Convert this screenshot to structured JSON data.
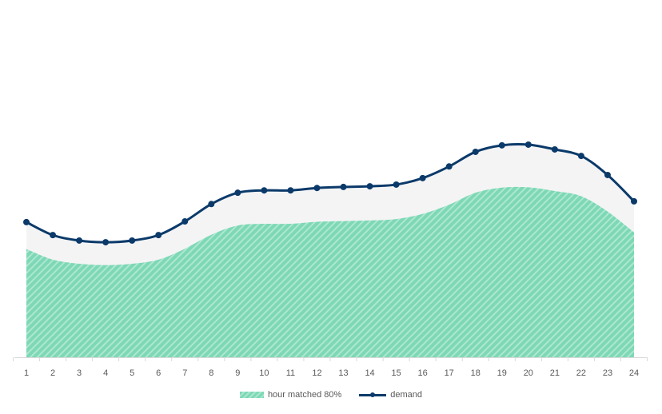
{
  "chart_data": {
    "type": "area",
    "title": "",
    "xlabel": "",
    "ylabel": "",
    "categories": [
      "1",
      "2",
      "3",
      "4",
      "5",
      "6",
      "7",
      "8",
      "9",
      "10",
      "11",
      "12",
      "13",
      "14",
      "15",
      "16",
      "17",
      "18",
      "19",
      "20",
      "21",
      "22",
      "23",
      "24"
    ],
    "series": [
      {
        "name": "hour matched 80%",
        "type": "area",
        "color": "#7dd8b5",
        "pattern": "diagonal-hatch",
        "values": [
          31.7,
          28.6,
          27.4,
          27.0,
          27.4,
          28.6,
          31.8,
          35.9,
          38.6,
          39.1,
          39.1,
          39.7,
          39.9,
          40.1,
          40.5,
          42.0,
          44.7,
          48.2,
          49.7,
          49.8,
          48.7,
          47.2,
          42.7,
          36.6
        ]
      },
      {
        "name": "demand",
        "type": "line",
        "color": "#0b3a6a",
        "marker": "circle",
        "values": [
          39.6,
          35.8,
          34.2,
          33.7,
          34.2,
          35.8,
          39.8,
          44.9,
          48.2,
          48.9,
          48.9,
          49.6,
          49.9,
          50.1,
          50.6,
          52.5,
          55.9,
          60.2,
          62.1,
          62.3,
          60.9,
          59.0,
          53.4,
          45.7
        ]
      }
    ],
    "unmatched_band_color": "#f4f4f5",
    "ylim": [
      0,
      100
    ],
    "y_axis_visible": false,
    "grid": false,
    "legend_position": "bottom"
  },
  "legend": {
    "items": [
      {
        "label": "hour matched 80%"
      },
      {
        "label": "demand"
      }
    ]
  }
}
